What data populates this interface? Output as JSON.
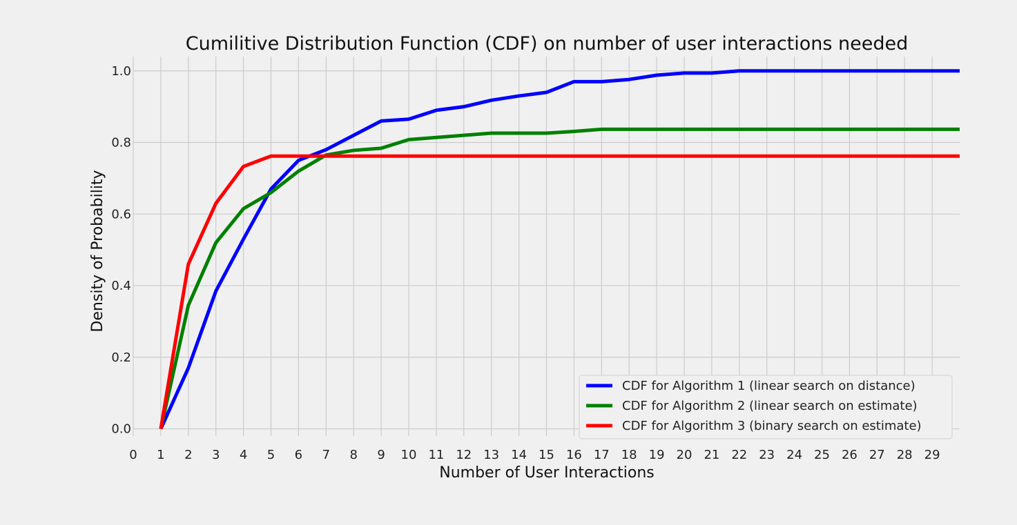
{
  "chart_data": {
    "type": "line",
    "title": "Cumilitive Distribution Function (CDF) on number of user interactions needed",
    "xlabel": "Number of User Interactions",
    "ylabel": "Density of Probability",
    "xlim": [
      0,
      30
    ],
    "ylim": [
      -0.02,
      1.04
    ],
    "xticks": [
      "0",
      "1",
      "2",
      "3",
      "4",
      "5",
      "6",
      "7",
      "8",
      "9",
      "10",
      "11",
      "12",
      "13",
      "14",
      "15",
      "16",
      "17",
      "18",
      "19",
      "20",
      "21",
      "22",
      "23",
      "24",
      "25",
      "26",
      "27",
      "28",
      "29"
    ],
    "yticks": [
      "0.0",
      "0.2",
      "0.4",
      "0.6",
      "0.8",
      "1.0"
    ],
    "grid": true,
    "legend_position": "lower-right",
    "x": [
      1,
      2,
      3,
      4,
      5,
      6,
      7,
      8,
      9,
      10,
      11,
      12,
      13,
      14,
      15,
      16,
      17,
      18,
      19,
      20,
      21,
      22,
      23,
      24,
      25,
      26,
      27,
      28,
      29,
      30
    ],
    "series": [
      {
        "name": "CDF for Algorithm 1 (linear search on distance)",
        "color": "#0000ff",
        "values": [
          0.0,
          0.17,
          0.385,
          0.53,
          0.67,
          0.75,
          0.78,
          0.82,
          0.86,
          0.865,
          0.89,
          0.9,
          0.918,
          0.93,
          0.94,
          0.97,
          0.97,
          0.976,
          0.988,
          0.994,
          0.994,
          1.0,
          1.0,
          1.0,
          1.0,
          1.0,
          1.0,
          1.0,
          1.0,
          1.0
        ]
      },
      {
        "name": "CDF for Algorithm 2 (linear search on estimate)",
        "color": "#008000",
        "values": [
          0.0,
          0.345,
          0.52,
          0.615,
          0.66,
          0.72,
          0.765,
          0.778,
          0.784,
          0.808,
          0.814,
          0.82,
          0.826,
          0.826,
          0.826,
          0.831,
          0.837,
          0.837,
          0.837,
          0.837,
          0.837,
          0.837,
          0.837,
          0.837,
          0.837,
          0.837,
          0.837,
          0.837,
          0.837,
          0.837
        ]
      },
      {
        "name": "CDF for Algorithm 3 (binary search on estimate)",
        "color": "#ff0000",
        "values": [
          0.0,
          0.46,
          0.63,
          0.733,
          0.762,
          0.762,
          0.762,
          0.762,
          0.762,
          0.762,
          0.762,
          0.762,
          0.762,
          0.762,
          0.762,
          0.762,
          0.762,
          0.762,
          0.762,
          0.762,
          0.762,
          0.762,
          0.762,
          0.762,
          0.762,
          0.762,
          0.762,
          0.762,
          0.762,
          0.762
        ]
      }
    ]
  }
}
